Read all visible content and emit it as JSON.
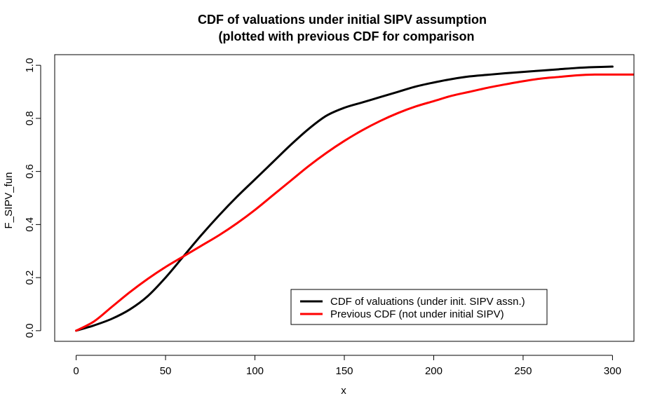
{
  "chart_data": {
    "type": "line",
    "title": "CDF of valuations under initial SIPV assumption",
    "subtitle": "(plotted with previous CDF for comparison",
    "xlabel": "x",
    "ylabel": "F_SIPV_fun",
    "xlim": [
      -12,
      312
    ],
    "ylim": [
      -0.04,
      1.04
    ],
    "x_ticks": [
      0,
      50,
      100,
      150,
      200,
      250,
      300
    ],
    "y_ticks": [
      0.0,
      0.2,
      0.4,
      0.6,
      0.8,
      1.0
    ],
    "x_tick_labels": [
      "0",
      "50",
      "100",
      "150",
      "200",
      "250",
      "300"
    ],
    "y_tick_labels": [
      "0.0",
      "0.2",
      "0.4",
      "0.6",
      "0.8",
      "1.0"
    ],
    "grid": false,
    "legend_position": "bottom-right",
    "series": [
      {
        "name": "CDF of valuations (under init. SIPV assn.)",
        "color": "#000000",
        "x": [
          0,
          10,
          20,
          30,
          40,
          50,
          60,
          70,
          80,
          90,
          100,
          110,
          120,
          130,
          140,
          150,
          160,
          170,
          180,
          190,
          200,
          210,
          220,
          230,
          240,
          250,
          260,
          270,
          280,
          290,
          300
        ],
        "y": [
          0.0,
          0.02,
          0.045,
          0.08,
          0.13,
          0.2,
          0.28,
          0.36,
          0.435,
          0.505,
          0.57,
          0.635,
          0.7,
          0.76,
          0.81,
          0.84,
          0.86,
          0.88,
          0.9,
          0.92,
          0.935,
          0.948,
          0.958,
          0.964,
          0.97,
          0.975,
          0.98,
          0.985,
          0.99,
          0.993,
          0.995
        ]
      },
      {
        "name": "Previous CDF (not under initial SIPV)",
        "color": "#ff0000",
        "x": [
          0,
          10,
          20,
          30,
          40,
          50,
          60,
          70,
          80,
          90,
          100,
          110,
          120,
          130,
          140,
          150,
          160,
          170,
          180,
          190,
          200,
          210,
          220,
          230,
          240,
          250,
          260,
          270,
          280,
          290,
          300,
          312
        ],
        "y": [
          0.0,
          0.035,
          0.09,
          0.145,
          0.195,
          0.24,
          0.28,
          0.32,
          0.36,
          0.405,
          0.455,
          0.51,
          0.565,
          0.62,
          0.67,
          0.715,
          0.755,
          0.79,
          0.82,
          0.845,
          0.865,
          0.885,
          0.9,
          0.915,
          0.928,
          0.94,
          0.95,
          0.956,
          0.962,
          0.965,
          0.965,
          0.965
        ]
      }
    ]
  }
}
